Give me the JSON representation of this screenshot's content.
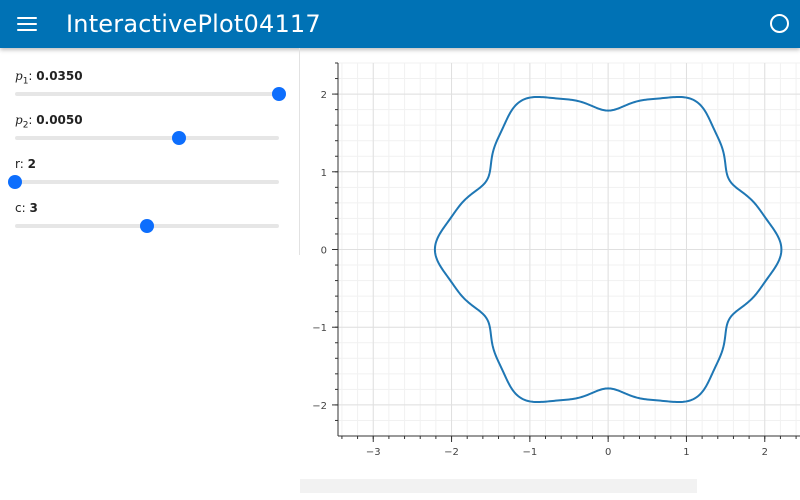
{
  "app": {
    "title": "InteractivePlot04117"
  },
  "controls": [
    {
      "label_symbol": "p",
      "label_sub": "1",
      "label_text": "",
      "value": "0.0350",
      "fraction": 1.0
    },
    {
      "label_symbol": "p",
      "label_sub": "2",
      "label_text": "",
      "value": "0.0050",
      "fraction": 0.62
    },
    {
      "label_symbol": "",
      "label_sub": "",
      "label_text": "r",
      "value": "2",
      "fraction": 0.0
    },
    {
      "label_symbol": "",
      "label_sub": "",
      "label_text": "c",
      "value": "3",
      "fraction": 0.5
    }
  ],
  "colors": {
    "appbar": "#0072b5",
    "accent": "#0d6efd",
    "curve": "#1f77b4"
  },
  "icons": {
    "menu": "hamburger-menu-icon",
    "busy": "busy-indicator-icon"
  },
  "chart_data": {
    "type": "line",
    "title": "",
    "xlabel": "",
    "ylabel": "",
    "xlim": [
      -3.45,
      2.45
    ],
    "ylim": [
      -2.4,
      2.4
    ],
    "x_ticks": [
      -3,
      -2,
      -1,
      0,
      1,
      2
    ],
    "y_ticks": [
      -2,
      -1,
      0,
      1,
      2
    ],
    "x_tick_labels": [
      "−3",
      "−2",
      "−1",
      "0",
      "1",
      "2"
    ],
    "y_tick_labels": [
      "−2",
      "−1",
      "0",
      "1",
      "2"
    ],
    "grid": true,
    "series": [
      {
        "description": "closed polar curve with six lobes",
        "polar": {
          "base_radius": 2,
          "lobes": 6,
          "amplitude": 0.17
        }
      }
    ]
  }
}
